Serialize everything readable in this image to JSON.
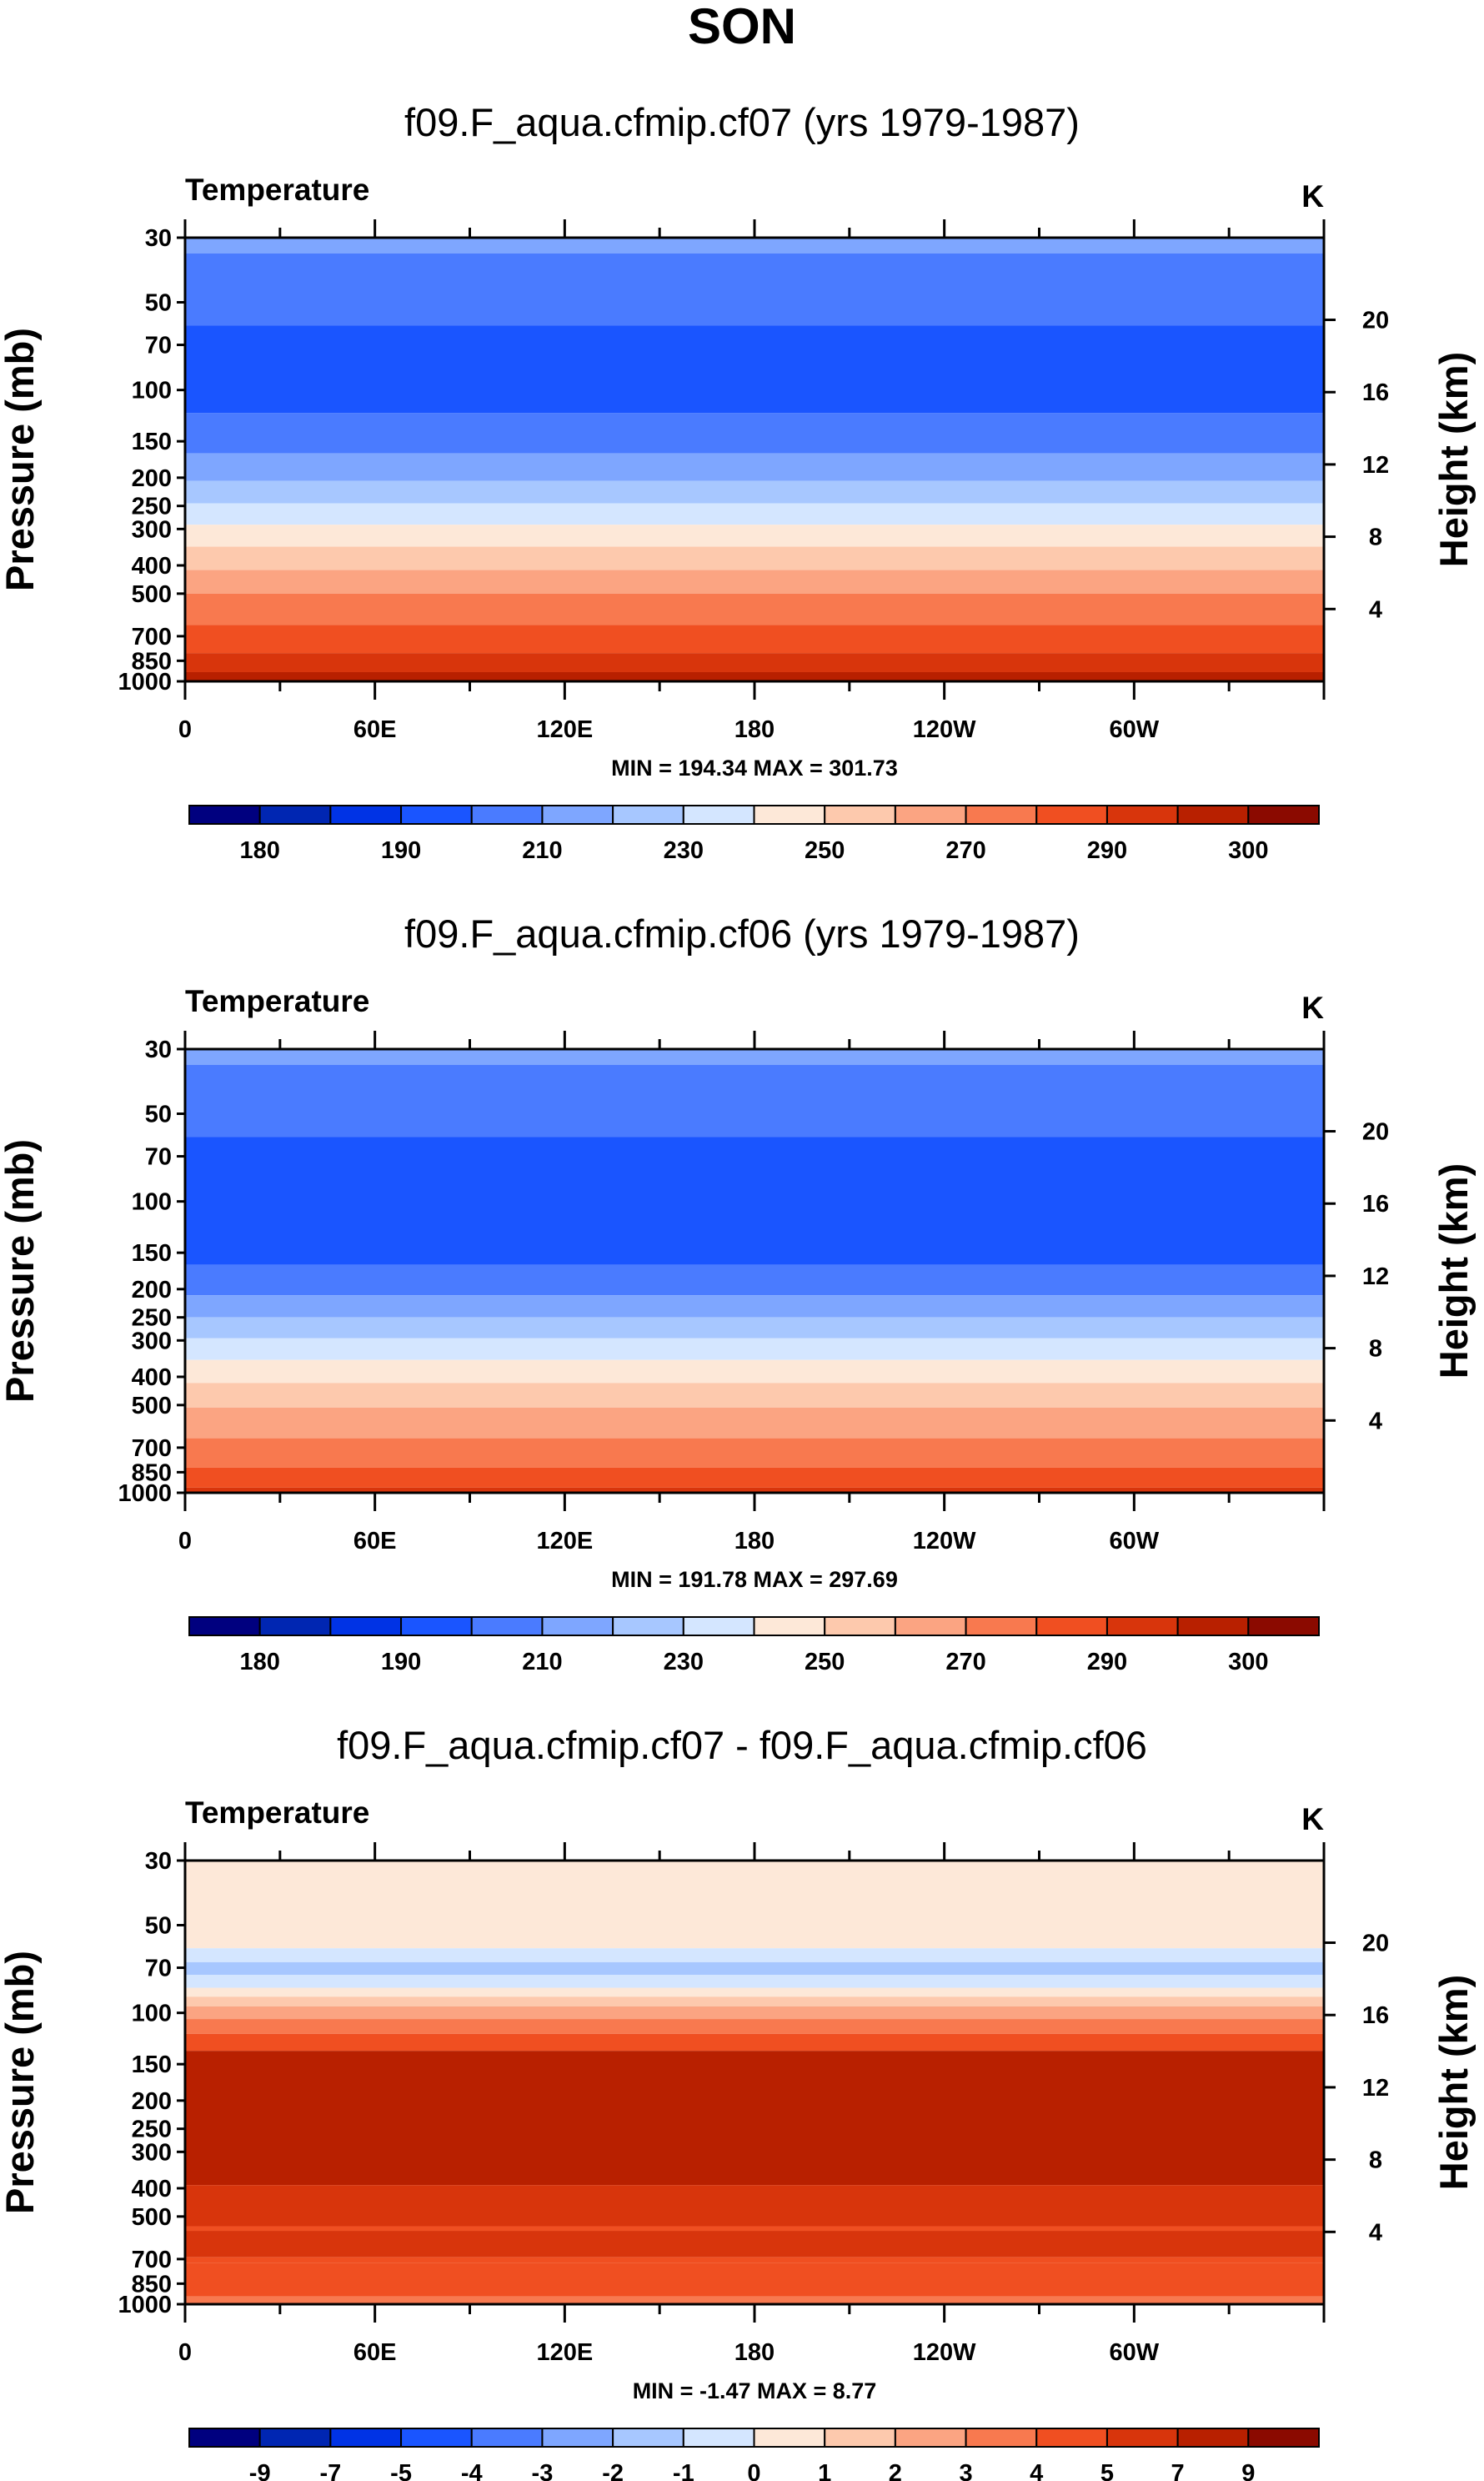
{
  "figure": {
    "title": "SON"
  },
  "colors": {
    "levels": [
      "#00007f",
      "#0026b2",
      "#0033e5",
      "#1a55ff",
      "#4a7bff",
      "#7ea6ff",
      "#a7c7ff",
      "#d4e6ff",
      "#fde8d8",
      "#fdc9ad",
      "#fba482",
      "#f8794f",
      "#f04f21",
      "#d8350c",
      "#b82000",
      "#8b0a00"
    ]
  },
  "chart_data": [
    {
      "type": "heatmap",
      "title": "f09.F_aqua.cfmip.cf07 (yrs 1979-1987)",
      "variable_label": "Temperature",
      "units_label": "K",
      "ylabel": "Pressure (mb)",
      "ylabel_right": "Height (km)",
      "x_ticks": [
        "0",
        "60E",
        "120E",
        "180",
        "120W",
        "60W"
      ],
      "y_ticks": [
        "30",
        "50",
        "70",
        "100",
        "150",
        "200",
        "250",
        "300",
        "400",
        "500",
        "700",
        "850",
        "1000"
      ],
      "right_ticks": [
        "20",
        "16",
        "12",
        "8",
        "4"
      ],
      "minmax_text": "MIN = 194.34  MAX = 301.73",
      "min": 194.34,
      "max": 301.73,
      "colorbar_labels": [
        "180",
        "190",
        "210",
        "230",
        "250",
        "270",
        "290",
        "300"
      ],
      "bands": [
        {
          "p_top": 30,
          "p_bot": 34,
          "color_index": 5
        },
        {
          "p_top": 34,
          "p_bot": 60,
          "color_index": 4
        },
        {
          "p_top": 60,
          "p_bot": 120,
          "color_index": 3
        },
        {
          "p_top": 120,
          "p_bot": 165,
          "color_index": 4
        },
        {
          "p_top": 165,
          "p_bot": 205,
          "color_index": 5
        },
        {
          "p_top": 205,
          "p_bot": 245,
          "color_index": 6
        },
        {
          "p_top": 245,
          "p_bot": 290,
          "color_index": 7
        },
        {
          "p_top": 290,
          "p_bot": 345,
          "color_index": 8
        },
        {
          "p_top": 345,
          "p_bot": 415,
          "color_index": 9
        },
        {
          "p_top": 415,
          "p_bot": 500,
          "color_index": 10
        },
        {
          "p_top": 500,
          "p_bot": 640,
          "color_index": 11
        },
        {
          "p_top": 640,
          "p_bot": 800,
          "color_index": 12
        },
        {
          "p_top": 800,
          "p_bot": 930,
          "color_index": 13
        },
        {
          "p_top": 930,
          "p_bot": 1000,
          "color_index": 14
        }
      ]
    },
    {
      "type": "heatmap",
      "title": "f09.F_aqua.cfmip.cf06 (yrs 1979-1987)",
      "variable_label": "Temperature",
      "units_label": "K",
      "ylabel": "Pressure (mb)",
      "ylabel_right": "Height (km)",
      "x_ticks": [
        "0",
        "60E",
        "120E",
        "180",
        "120W",
        "60W"
      ],
      "y_ticks": [
        "30",
        "50",
        "70",
        "100",
        "150",
        "200",
        "250",
        "300",
        "400",
        "500",
        "700",
        "850",
        "1000"
      ],
      "right_ticks": [
        "20",
        "16",
        "12",
        "8",
        "4"
      ],
      "minmax_text": "MIN = 191.78  MAX = 297.69",
      "min": 191.78,
      "max": 297.69,
      "colorbar_labels": [
        "180",
        "190",
        "210",
        "230",
        "250",
        "270",
        "290",
        "300"
      ],
      "bands": [
        {
          "p_top": 30,
          "p_bot": 34,
          "color_index": 5
        },
        {
          "p_top": 34,
          "p_bot": 60,
          "color_index": 4
        },
        {
          "p_top": 60,
          "p_bot": 165,
          "color_index": 3
        },
        {
          "p_top": 165,
          "p_bot": 210,
          "color_index": 4
        },
        {
          "p_top": 210,
          "p_bot": 250,
          "color_index": 5
        },
        {
          "p_top": 250,
          "p_bot": 295,
          "color_index": 6
        },
        {
          "p_top": 295,
          "p_bot": 350,
          "color_index": 7
        },
        {
          "p_top": 350,
          "p_bot": 420,
          "color_index": 8
        },
        {
          "p_top": 420,
          "p_bot": 510,
          "color_index": 9
        },
        {
          "p_top": 510,
          "p_bot": 650,
          "color_index": 10
        },
        {
          "p_top": 650,
          "p_bot": 820,
          "color_index": 11
        },
        {
          "p_top": 820,
          "p_bot": 960,
          "color_index": 12
        },
        {
          "p_top": 960,
          "p_bot": 1000,
          "color_index": 13
        }
      ]
    },
    {
      "type": "heatmap",
      "title": "f09.F_aqua.cfmip.cf07 - f09.F_aqua.cfmip.cf06",
      "variable_label": "Temperature",
      "units_label": "K",
      "ylabel": "Pressure (mb)",
      "ylabel_right": "Height (km)",
      "x_ticks": [
        "0",
        "60E",
        "120E",
        "180",
        "120W",
        "60W"
      ],
      "y_ticks": [
        "30",
        "50",
        "70",
        "100",
        "150",
        "200",
        "250",
        "300",
        "400",
        "500",
        "700",
        "850",
        "1000"
      ],
      "right_ticks": [
        "20",
        "16",
        "12",
        "8",
        "4"
      ],
      "minmax_text": "MIN =  -1.47  MAX =   8.77",
      "min": -1.47,
      "max": 8.77,
      "colorbar_labels": [
        "-9",
        "-7",
        "-5",
        "-4",
        "-3",
        "-2",
        "-1",
        "0",
        "1",
        "2",
        "3",
        "4",
        "5",
        "7",
        "9"
      ],
      "bands": [
        {
          "p_top": 30,
          "p_bot": 60,
          "color_index": 8
        },
        {
          "p_top": 60,
          "p_bot": 67,
          "color_index": 7
        },
        {
          "p_top": 67,
          "p_bot": 74,
          "color_index": 6
        },
        {
          "p_top": 74,
          "p_bot": 82,
          "color_index": 7
        },
        {
          "p_top": 82,
          "p_bot": 88,
          "color_index": 8
        },
        {
          "p_top": 88,
          "p_bot": 95,
          "color_index": 9
        },
        {
          "p_top": 95,
          "p_bot": 105,
          "color_index": 10
        },
        {
          "p_top": 105,
          "p_bot": 118,
          "color_index": 11
        },
        {
          "p_top": 118,
          "p_bot": 135,
          "color_index": 12
        },
        {
          "p_top": 135,
          "p_bot": 390,
          "color_index": 14
        },
        {
          "p_top": 390,
          "p_bot": 540,
          "color_index": 13
        },
        {
          "p_top": 540,
          "p_bot": 560,
          "color_index": 12
        },
        {
          "p_top": 560,
          "p_bot": 690,
          "color_index": 13
        },
        {
          "p_top": 690,
          "p_bot": 720,
          "color_index": 12
        },
        {
          "p_top": 720,
          "p_bot": 940,
          "color_index": 12
        },
        {
          "p_top": 940,
          "p_bot": 1000,
          "color_index": 11
        }
      ]
    }
  ]
}
